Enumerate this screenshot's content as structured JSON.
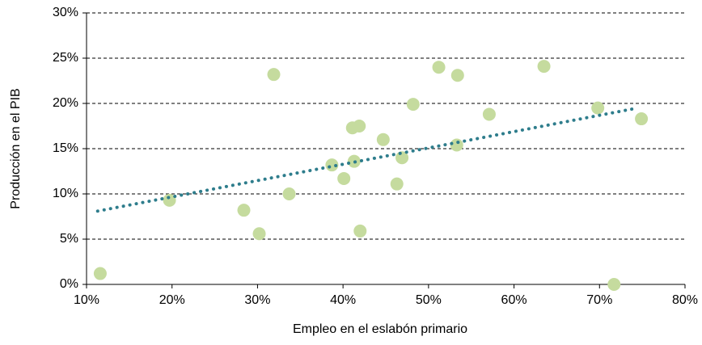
{
  "chart_data": {
    "type": "scatter",
    "x_label": "Empleo en el eslabón primario",
    "y_label": "Producción en el PIB",
    "series": [
      {
        "color": "#c5db9e",
        "x": [
          11.6,
          19.7,
          28.4,
          30.2,
          31.9,
          33.7,
          38.7,
          40.1,
          41.1,
          41.3,
          41.9,
          42.0,
          44.7,
          46.3,
          46.9,
          48.2,
          51.2,
          53.4,
          53.3,
          57.1,
          63.5,
          69.8,
          71.7,
          74.9
        ],
        "values": [
          1.2,
          9.3,
          8.2,
          5.6,
          23.2,
          10.0,
          13.2,
          11.7,
          17.3,
          13.6,
          17.5,
          5.9,
          16.0,
          11.1,
          14.0,
          19.9,
          24.0,
          23.1,
          15.4,
          18.8,
          24.1,
          19.5,
          0,
          18.3
        ]
      }
    ],
    "trendline": {
      "x": [
        11.3,
        74.5
      ],
      "values": [
        8.1,
        19.5
      ],
      "color": "#2e7d8c"
    },
    "xlim": [
      10,
      80
    ],
    "xticks": [
      {
        "value": 10,
        "label": "10%"
      },
      {
        "value": 20,
        "label": "20%"
      },
      {
        "value": 30,
        "label": "30%"
      },
      {
        "value": 40,
        "label": "40%"
      },
      {
        "value": 50,
        "label": "50%"
      },
      {
        "value": 60,
        "label": "60%"
      },
      {
        "value": 70,
        "label": "70%"
      },
      {
        "value": 80,
        "label": "80%"
      }
    ],
    "ylim": [
      0,
      30
    ],
    "yticks": [
      {
        "value": 0,
        "label": "0%"
      },
      {
        "value": 5,
        "label": "5%"
      },
      {
        "value": 10,
        "label": "10%"
      },
      {
        "value": 15,
        "label": "15%"
      },
      {
        "value": 20,
        "label": "20%"
      },
      {
        "value": 25,
        "label": "25%"
      },
      {
        "value": 30,
        "label": "30%"
      }
    ],
    "grid": true
  }
}
